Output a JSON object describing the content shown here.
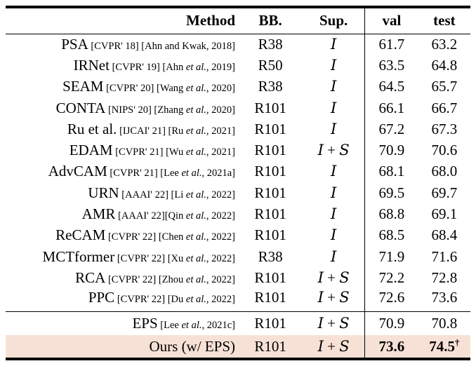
{
  "colors": {
    "highlight_bg": "#f7e1d6",
    "rule": "#000000",
    "text": "#000000"
  },
  "table": {
    "headers": {
      "method": "Method",
      "bb": "BB.",
      "sup": "Sup.",
      "val": "val",
      "test": "test"
    },
    "rows": [
      {
        "method": "PSA",
        "citation": "[CVPR' 18] [Ahn and Kwak, 2018]",
        "bb": "R38",
        "sup": "I",
        "val": "61.7",
        "test": "63.2"
      },
      {
        "method": "IRNet",
        "citation": "[CVPR' 19] [Ahn et al., 2019]",
        "bb": "R50",
        "sup": "I",
        "val": "63.5",
        "test": "64.8"
      },
      {
        "method": "SEAM",
        "citation": "[CVPR' 20] [Wang et al., 2020]",
        "bb": "R38",
        "sup": "I",
        "val": "64.5",
        "test": "65.7"
      },
      {
        "method": "CONTA",
        "citation": "[NIPS' 20] [Zhang et al., 2020]",
        "bb": "R101",
        "sup": "I",
        "val": "66.1",
        "test": "66.7"
      },
      {
        "method": "Ru et al.",
        "citation": "[IJCAI' 21] [Ru et al., 2021]",
        "bb": "R101",
        "sup": "I",
        "val": "67.2",
        "test": "67.3"
      },
      {
        "method": "EDAM",
        "citation": "[CVPR' 21] [Wu et al., 2021]",
        "bb": "R101",
        "sup": "I + S",
        "val": "70.9",
        "test": "70.6"
      },
      {
        "method": "AdvCAM",
        "citation": "[CVPR' 21] [Lee et al., 2021a]",
        "bb": "R101",
        "sup": "I",
        "val": "68.1",
        "test": "68.0"
      },
      {
        "method": "URN",
        "citation": "[AAAI' 22] [Li et al., 2022]",
        "bb": "R101",
        "sup": "I",
        "val": "69.5",
        "test": "69.7"
      },
      {
        "method": "AMR",
        "citation": "[AAAI' 22][Qin et al., 2022]",
        "bb": "R101",
        "sup": "I",
        "val": "68.8",
        "test": "69.1"
      },
      {
        "method": "ReCAM",
        "citation": "[CVPR' 22] [Chen et al., 2022]",
        "bb": "R101",
        "sup": "I",
        "val": "68.5",
        "test": "68.4"
      },
      {
        "method": "MCTformer",
        "citation": "[CVPR' 22] [Xu et al., 2022]",
        "bb": "R38",
        "sup": "I",
        "val": "71.9",
        "test": "71.6"
      },
      {
        "method": "RCA",
        "citation": "[CVPR' 22] [Zhou et al., 2022]",
        "bb": "R101",
        "sup": "I + S",
        "val": "72.2",
        "test": "72.8"
      },
      {
        "method": "PPC",
        "citation": "[CVPR' 22] [Du et al., 2022]",
        "bb": "R101",
        "sup": "I + S",
        "val": "72.6",
        "test": "73.6"
      }
    ],
    "footer_rows": [
      {
        "method": "EPS",
        "citation": "[Lee et al., 2021c]",
        "bb": "R101",
        "sup": "I + S",
        "val": "70.9",
        "test": "70.8"
      },
      {
        "method": "Ours (w/ EPS)",
        "citation": "",
        "bb": "R101",
        "sup": "I + S",
        "val": "73.6",
        "test": "74.5",
        "dagger": "†",
        "bold": true,
        "highlight": true
      }
    ]
  }
}
